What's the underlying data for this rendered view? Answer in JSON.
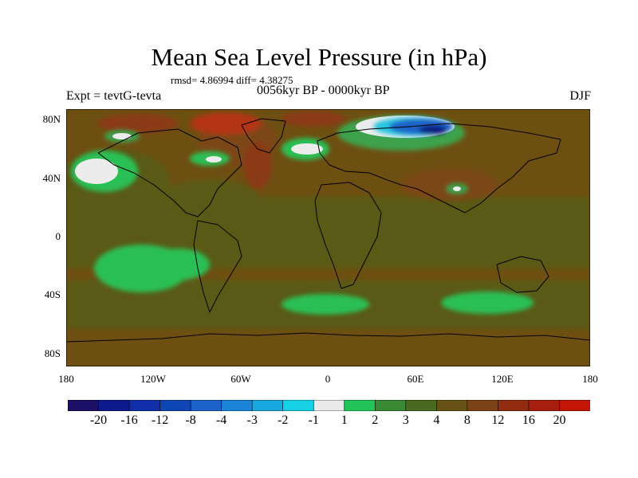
{
  "map": {
    "title": "Mean Sea Level Pressure (in hPa)",
    "stats": "rmsd= 4.86994 diff= 4.38275",
    "experiment": "Expt = tevtG-tevta",
    "period": "0056kyr BP - 0000kyr BP",
    "season": "DJF",
    "lat_labels": [
      "80N",
      "40N",
      "0",
      "40S",
      "80S"
    ],
    "lon_labels": [
      "180",
      "120W",
      "60W",
      "0",
      "60E",
      "120E",
      "180"
    ],
    "colors": {
      "background": "#6e4f12",
      "green": "#2bbf55",
      "light_green": "#3ea24c",
      "olive": "#5a5a16",
      "brown": "#7c4714",
      "red": "#b33512",
      "white": "#ececec",
      "blue": "#1f63c8",
      "cyan": "#26c6de",
      "dark_blue": "#0a1a80"
    },
    "colorbar": {
      "labels": [
        "-20",
        "-16",
        "-12",
        "-8",
        "-4",
        "-3",
        "-2",
        "-1",
        "1",
        "2",
        "3",
        "4",
        "8",
        "12",
        "16",
        "20"
      ],
      "colors": [
        "#1c0f68",
        "#0d1a8c",
        "#0f2ea8",
        "#0f46b4",
        "#1d62c8",
        "#1c84d8",
        "#18a8e0",
        "#16d0e6",
        "#eaeaea",
        "#22c45a",
        "#3a8a35",
        "#4a6a20",
        "#665214",
        "#7a4216",
        "#922b10",
        "#a81e0e",
        "#c41608"
      ]
    }
  }
}
